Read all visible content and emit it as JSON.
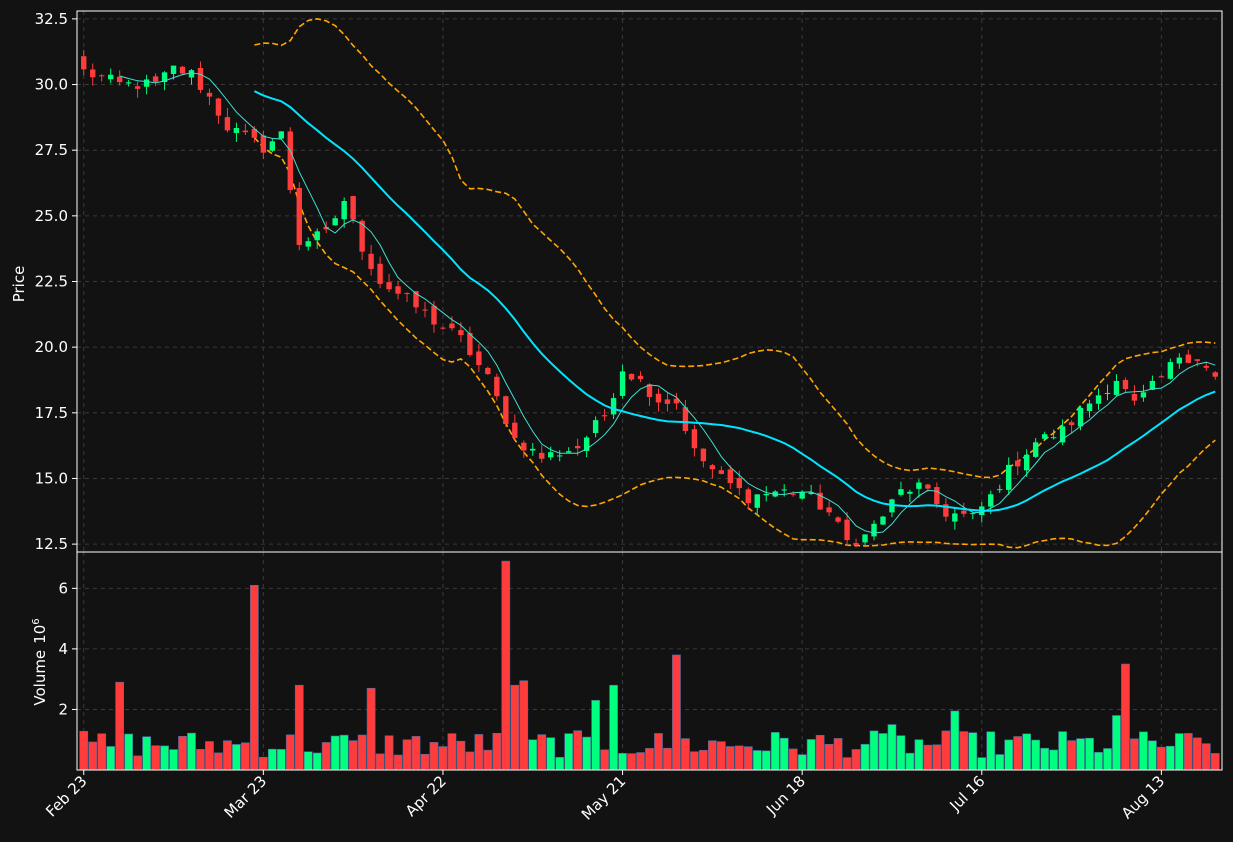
{
  "chart_data": {
    "type": "candlestick",
    "price_panel": {
      "ylabel": "Price",
      "ylim": [
        12.2,
        32.8
      ],
      "yticks": [
        "12.5",
        "15.0",
        "17.5",
        "20.0",
        "22.5",
        "25.0",
        "27.5",
        "30.0",
        "32.5"
      ],
      "ytick_values": [
        12.5,
        15.0,
        17.5,
        20.0,
        22.5,
        25.0,
        27.5,
        30.0,
        32.5
      ],
      "grid": true
    },
    "volume_panel": {
      "ylabel": "Volume",
      "ylabel_exponent": "10",
      "ylabel_power": "6",
      "ylim": [
        0,
        7.2
      ],
      "yticks": [
        "2",
        "4",
        "6"
      ],
      "ytick_values": [
        2,
        4,
        6
      ],
      "grid": true
    },
    "x_ticks": [
      {
        "label": "Feb 23",
        "index": 0
      },
      {
        "label": "Mar 23",
        "index": 20
      },
      {
        "label": "Apr 22",
        "index": 40
      },
      {
        "label": "May 21",
        "index": 60
      },
      {
        "label": "Jun 18",
        "index": 80
      },
      {
        "label": "Jul 16",
        "index": 100
      },
      {
        "label": "Aug 13",
        "index": 120
      }
    ],
    "bar_count": 127,
    "price_anchors": [
      [
        0,
        30.5
      ],
      [
        4,
        30.0
      ],
      [
        8,
        30.0
      ],
      [
        10,
        30.6
      ],
      [
        12,
        30.4
      ],
      [
        14,
        29.5
      ],
      [
        16,
        28.4
      ],
      [
        18,
        28.0
      ],
      [
        20,
        27.6
      ],
      [
        22,
        28.1
      ],
      [
        24,
        24.0
      ],
      [
        27,
        24.3
      ],
      [
        29,
        25.6
      ],
      [
        31,
        23.8
      ],
      [
        33,
        22.5
      ],
      [
        36,
        21.8
      ],
      [
        39,
        21.0
      ],
      [
        42,
        20.3
      ],
      [
        45,
        18.8
      ],
      [
        48,
        16.5
      ],
      [
        51,
        15.8
      ],
      [
        55,
        16.2
      ],
      [
        58,
        17.4
      ],
      [
        60,
        19.2
      ],
      [
        62,
        18.7
      ],
      [
        64,
        18.0
      ],
      [
        66,
        17.9
      ],
      [
        68,
        16.0
      ],
      [
        71,
        15.0
      ],
      [
        74,
        14.3
      ],
      [
        77,
        14.5
      ],
      [
        80,
        14.5
      ],
      [
        83,
        13.7
      ],
      [
        85,
        12.6
      ],
      [
        87,
        12.8
      ],
      [
        89,
        13.6
      ],
      [
        91,
        14.5
      ],
      [
        93,
        14.7
      ],
      [
        96,
        13.7
      ],
      [
        99,
        13.5
      ],
      [
        101,
        14.3
      ],
      [
        103,
        15.3
      ],
      [
        106,
        16.4
      ],
      [
        109,
        16.8
      ],
      [
        112,
        17.9
      ],
      [
        115,
        18.8
      ],
      [
        117,
        17.8
      ],
      [
        120,
        18.8
      ],
      [
        122,
        19.7
      ],
      [
        124,
        19.6
      ],
      [
        126,
        18.8
      ]
    ],
    "volume_spikes": {
      "4": 2.9,
      "19": 6.1,
      "24": 2.8,
      "32": 2.7,
      "47": 6.9,
      "48": 2.8,
      "49": 2.95,
      "57": 2.3,
      "59": 2.8,
      "66": 3.8,
      "90": 1.5,
      "97": 1.95,
      "115": 1.8,
      "116": 3.5
    },
    "series": [
      {
        "type": "candles",
        "up_color": "#00ff7f",
        "down_color": "#ff3b3b"
      },
      {
        "type": "volume_bars",
        "up_color": "#00ff7f",
        "down_color": "#ff3b3b"
      },
      {
        "type": "moving_average",
        "window": 5,
        "color": "#40e0d0"
      },
      {
        "type": "moving_average",
        "window": 20,
        "color": "#00e5ff"
      },
      {
        "type": "bollinger_band",
        "window": 20,
        "color": "#ffa500"
      }
    ],
    "colors": {
      "background": "#121212",
      "grid": "#3a3a3a",
      "axis": "#ffffff"
    }
  }
}
